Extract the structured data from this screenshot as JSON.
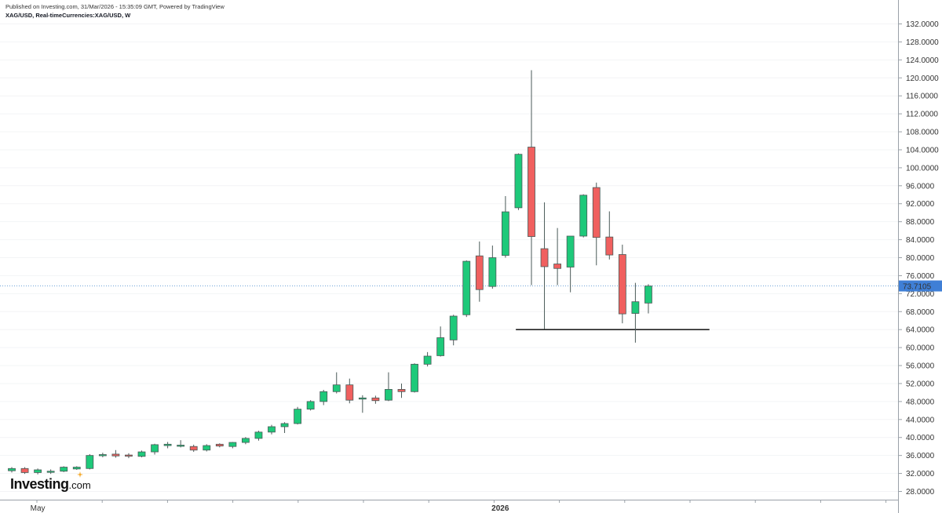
{
  "header": {
    "published": "Published on Investing.com, 31/Mar/2026 - 15:35:09 GMT, Powered by TradingView",
    "symbol": "XAG/USD, Real-timeCurrencies:XAG/USD, W"
  },
  "logo": {
    "main": "Investing",
    "suffix": ".com"
  },
  "colors": {
    "up": "#1ec97a",
    "down": "#f0605f",
    "wick": "#4a5a58",
    "priceLine": "#6fa3d8",
    "priceBadge": "#3f7fd6",
    "support": "#222222"
  },
  "chart_data": {
    "type": "candlestick",
    "title": "",
    "xlabel": "",
    "ylabel": "",
    "ylim": [
      26.0,
      133.6
    ],
    "y_ticks": [
      "28.0000",
      "32.0000",
      "36.0000",
      "40.0000",
      "44.0000",
      "48.0000",
      "52.0000",
      "56.0000",
      "60.0000",
      "64.0000",
      "68.0000",
      "72.0000",
      "76.0000",
      "80.0000",
      "84.0000",
      "88.0000",
      "92.0000",
      "96.0000",
      "100.0000",
      "104.0000",
      "108.0000",
      "112.0000",
      "116.0000",
      "120.0000",
      "124.0000",
      "128.0000",
      "132.0000"
    ],
    "x_labels": [
      {
        "label": "May",
        "index": 2,
        "bold": false
      },
      {
        "label": "2026",
        "index": 37.6,
        "bold": true
      }
    ],
    "last_price": "73.7105",
    "last_price_value": 73.71,
    "candles": [
      {
        "o": 32.6,
        "h": 33.4,
        "l": 32.2,
        "c": 33.1
      },
      {
        "o": 33.1,
        "h": 33.4,
        "l": 31.9,
        "c": 32.2
      },
      {
        "o": 32.2,
        "h": 33.1,
        "l": 31.8,
        "c": 32.8
      },
      {
        "o": 32.5,
        "h": 32.9,
        "l": 31.9,
        "c": 32.5
      },
      {
        "o": 32.5,
        "h": 33.6,
        "l": 32.3,
        "c": 33.4
      },
      {
        "o": 33.0,
        "h": 33.6,
        "l": 32.8,
        "c": 33.4
      },
      {
        "o": 33.1,
        "h": 36.3,
        "l": 32.9,
        "c": 36.0
      },
      {
        "o": 36.0,
        "h": 36.6,
        "l": 35.6,
        "c": 36.2
      },
      {
        "o": 36.3,
        "h": 37.2,
        "l": 35.5,
        "c": 35.9
      },
      {
        "o": 36.1,
        "h": 36.5,
        "l": 35.4,
        "c": 35.9
      },
      {
        "o": 35.8,
        "h": 37.1,
        "l": 35.6,
        "c": 36.8
      },
      {
        "o": 36.8,
        "h": 38.6,
        "l": 36.2,
        "c": 38.4
      },
      {
        "o": 38.2,
        "h": 39.0,
        "l": 37.6,
        "c": 38.5
      },
      {
        "o": 38.3,
        "h": 39.4,
        "l": 37.8,
        "c": 38.3
      },
      {
        "o": 38.0,
        "h": 38.4,
        "l": 36.8,
        "c": 37.2
      },
      {
        "o": 37.2,
        "h": 38.5,
        "l": 36.9,
        "c": 38.2
      },
      {
        "o": 38.5,
        "h": 38.7,
        "l": 37.8,
        "c": 38.1
      },
      {
        "o": 38.0,
        "h": 39.0,
        "l": 37.6,
        "c": 38.9
      },
      {
        "o": 38.9,
        "h": 40.1,
        "l": 38.5,
        "c": 39.8
      },
      {
        "o": 39.8,
        "h": 41.5,
        "l": 39.3,
        "c": 41.2
      },
      {
        "o": 41.2,
        "h": 42.8,
        "l": 40.7,
        "c": 42.4
      },
      {
        "o": 42.4,
        "h": 43.4,
        "l": 41.0,
        "c": 43.1
      },
      {
        "o": 43.1,
        "h": 46.8,
        "l": 42.9,
        "c": 46.3
      },
      {
        "o": 46.3,
        "h": 48.3,
        "l": 46.0,
        "c": 48.0
      },
      {
        "o": 48.0,
        "h": 50.6,
        "l": 47.2,
        "c": 50.2
      },
      {
        "o": 50.2,
        "h": 54.5,
        "l": 49.8,
        "c": 51.7
      },
      {
        "o": 51.7,
        "h": 53.1,
        "l": 47.6,
        "c": 48.3
      },
      {
        "o": 48.6,
        "h": 49.4,
        "l": 45.5,
        "c": 48.8
      },
      {
        "o": 48.8,
        "h": 49.3,
        "l": 47.5,
        "c": 48.2
      },
      {
        "o": 48.3,
        "h": 54.5,
        "l": 48.1,
        "c": 50.7
      },
      {
        "o": 50.7,
        "h": 52.0,
        "l": 48.8,
        "c": 50.2
      },
      {
        "o": 50.2,
        "h": 56.5,
        "l": 50.0,
        "c": 56.3
      },
      {
        "o": 56.3,
        "h": 59.0,
        "l": 55.8,
        "c": 58.1
      },
      {
        "o": 58.2,
        "h": 64.7,
        "l": 58.0,
        "c": 62.2
      },
      {
        "o": 61.7,
        "h": 67.3,
        "l": 60.5,
        "c": 67.0
      },
      {
        "o": 67.3,
        "h": 79.4,
        "l": 66.8,
        "c": 79.2
      },
      {
        "o": 80.4,
        "h": 83.6,
        "l": 70.2,
        "c": 72.9
      },
      {
        "o": 73.6,
        "h": 82.7,
        "l": 73.1,
        "c": 80.0
      },
      {
        "o": 80.5,
        "h": 93.7,
        "l": 80.0,
        "c": 90.2
      },
      {
        "o": 91.1,
        "h": 103.2,
        "l": 90.6,
        "c": 103.0
      },
      {
        "o": 104.6,
        "h": 121.7,
        "l": 73.9,
        "c": 84.7
      },
      {
        "o": 82.0,
        "h": 92.3,
        "l": 64.1,
        "c": 78.0
      },
      {
        "o": 78.6,
        "h": 86.6,
        "l": 73.9,
        "c": 77.6
      },
      {
        "o": 77.9,
        "h": 84.8,
        "l": 72.3,
        "c": 84.8
      },
      {
        "o": 84.8,
        "h": 94.1,
        "l": 84.5,
        "c": 93.9
      },
      {
        "o": 95.6,
        "h": 96.7,
        "l": 78.3,
        "c": 84.5
      },
      {
        "o": 84.6,
        "h": 90.3,
        "l": 79.6,
        "c": 80.6
      },
      {
        "o": 80.7,
        "h": 82.9,
        "l": 65.4,
        "c": 67.5
      },
      {
        "o": 67.6,
        "h": 74.4,
        "l": 61.1,
        "c": 70.2
      },
      {
        "o": 69.9,
        "h": 74.1,
        "l": 67.6,
        "c": 73.7
      }
    ],
    "annotations": [
      {
        "type": "support-line",
        "value": 64.0,
        "from_index": 38.8,
        "to_index": 53.7
      }
    ]
  }
}
